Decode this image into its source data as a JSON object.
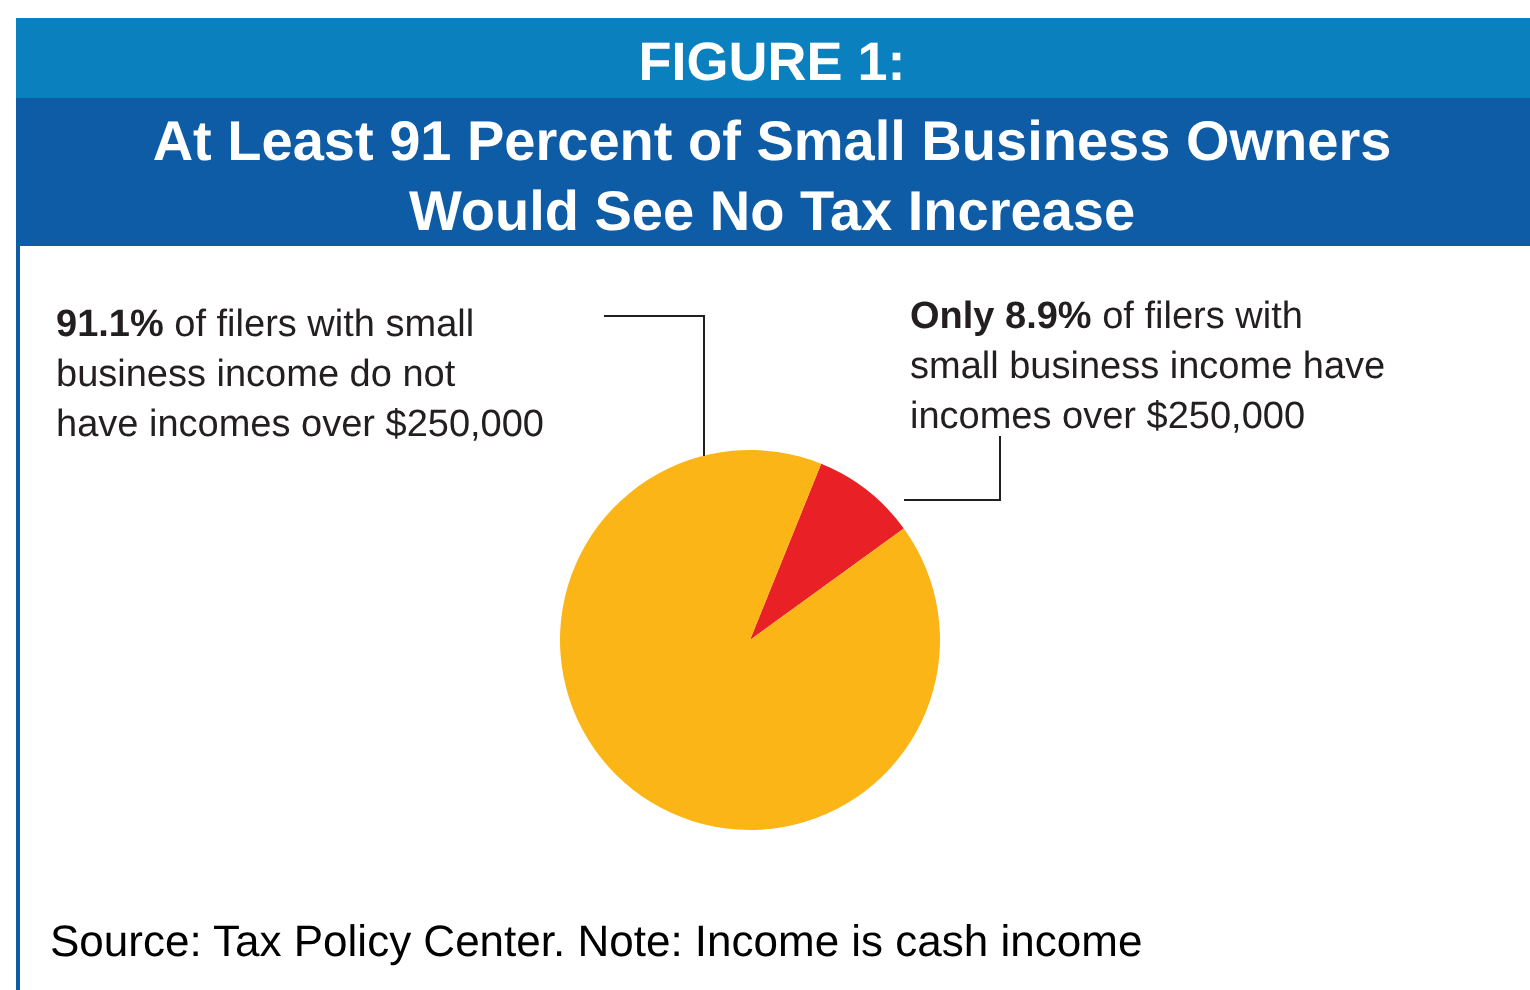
{
  "chart_data": {
    "type": "pie",
    "title": "FIGURE 1:",
    "subtitle": "At Least 91 Percent of Small Business Owners Would See No Tax Increase",
    "categories": [
      "Only 8.9% of filers with small business income have incomes over $250,000",
      "91.1% of filers with small business income do not have incomes over $250,000"
    ],
    "values": [
      8.9,
      91.1
    ],
    "colors": [
      "#e92127",
      "#fbb516"
    ],
    "annotations": [
      "Source: Tax Policy Center.  Note: Income is cash income"
    ]
  }
}
